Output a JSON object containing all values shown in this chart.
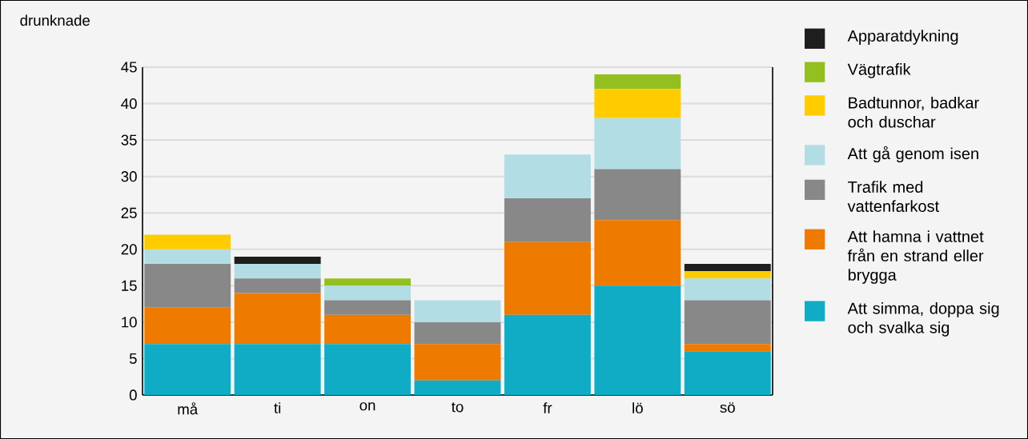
{
  "chart_data": {
    "type": "bar",
    "stacked": true,
    "ylabel": "drunknade",
    "categories": [
      "må",
      "ti",
      "on",
      "to",
      "fr",
      "lö",
      "sö"
    ],
    "series": [
      {
        "name": "Att simma, doppa sig och svalka sig",
        "color": "#10acc6",
        "values": [
          7,
          7,
          7,
          2,
          11,
          15,
          6
        ]
      },
      {
        "name": "Att hamna i vattnet från en strand eller brygga",
        "color": "#ee7a00",
        "values": [
          5,
          7,
          4,
          5,
          10,
          9,
          1
        ]
      },
      {
        "name": "Trafik med vattenfarkost",
        "color": "#888888",
        "values": [
          6,
          2,
          2,
          3,
          6,
          7,
          6
        ]
      },
      {
        "name": "Att gå genom isen",
        "color": "#b3dde4",
        "values": [
          2,
          2,
          2,
          3,
          6,
          7,
          3
        ]
      },
      {
        "name": "Badtunnor, badkar och duschar",
        "color": "#ffcc00",
        "values": [
          2,
          0,
          0,
          0,
          0,
          4,
          1
        ]
      },
      {
        "name": "Vägtrafik",
        "color": "#93c01f",
        "values": [
          0,
          0,
          1,
          0,
          0,
          2,
          0
        ]
      },
      {
        "name": "Apparatdykning",
        "color": "#1e1e1e",
        "values": [
          0,
          1,
          0,
          0,
          0,
          0,
          1
        ]
      }
    ],
    "ylim": [
      0,
      45
    ],
    "yticks": [
      0,
      5,
      10,
      15,
      20,
      25,
      30,
      35,
      40,
      45
    ],
    "grid": "y",
    "legend": "right"
  }
}
